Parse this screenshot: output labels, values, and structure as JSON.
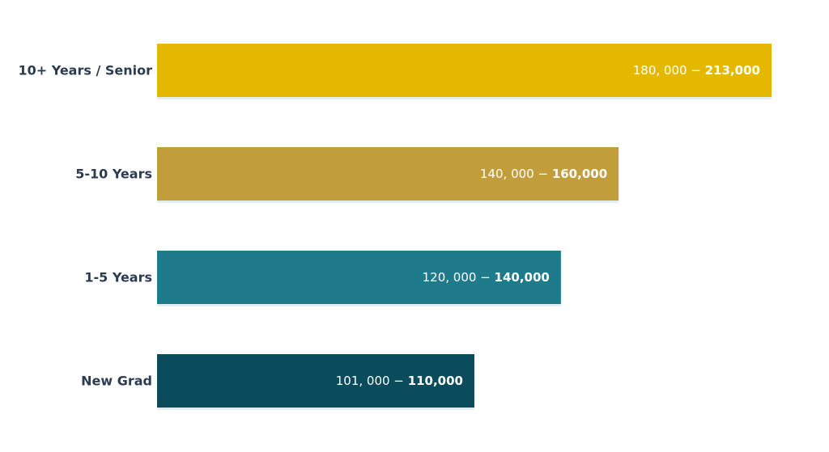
{
  "chart_data": {
    "type": "bar",
    "orientation": "horizontal",
    "categories": [
      "10+ Years / Senior",
      "5-10 Years",
      "1-5 Years",
      "New Grad"
    ],
    "values": [
      213000,
      160000,
      140000,
      110000
    ],
    "range_low": [
      180000,
      140000,
      120000,
      101000
    ],
    "range_high": [
      213000,
      160000,
      140000,
      110000
    ],
    "data_labels": [
      {
        "low": "180, 000 − ",
        "high": "213,000"
      },
      {
        "low": "140, 000 − ",
        "high": "160,000"
      },
      {
        "low": "120, 000 − ",
        "high": "140,000"
      },
      {
        "low": "101, 000 − ",
        "high": "110,000"
      }
    ],
    "colors": [
      "#e5b800",
      "#c29d3b",
      "#1f7a8c",
      "#0a4c5c"
    ],
    "xlim": [
      0,
      225000
    ],
    "grid": false,
    "title": "",
    "xlabel": "",
    "ylabel": ""
  }
}
